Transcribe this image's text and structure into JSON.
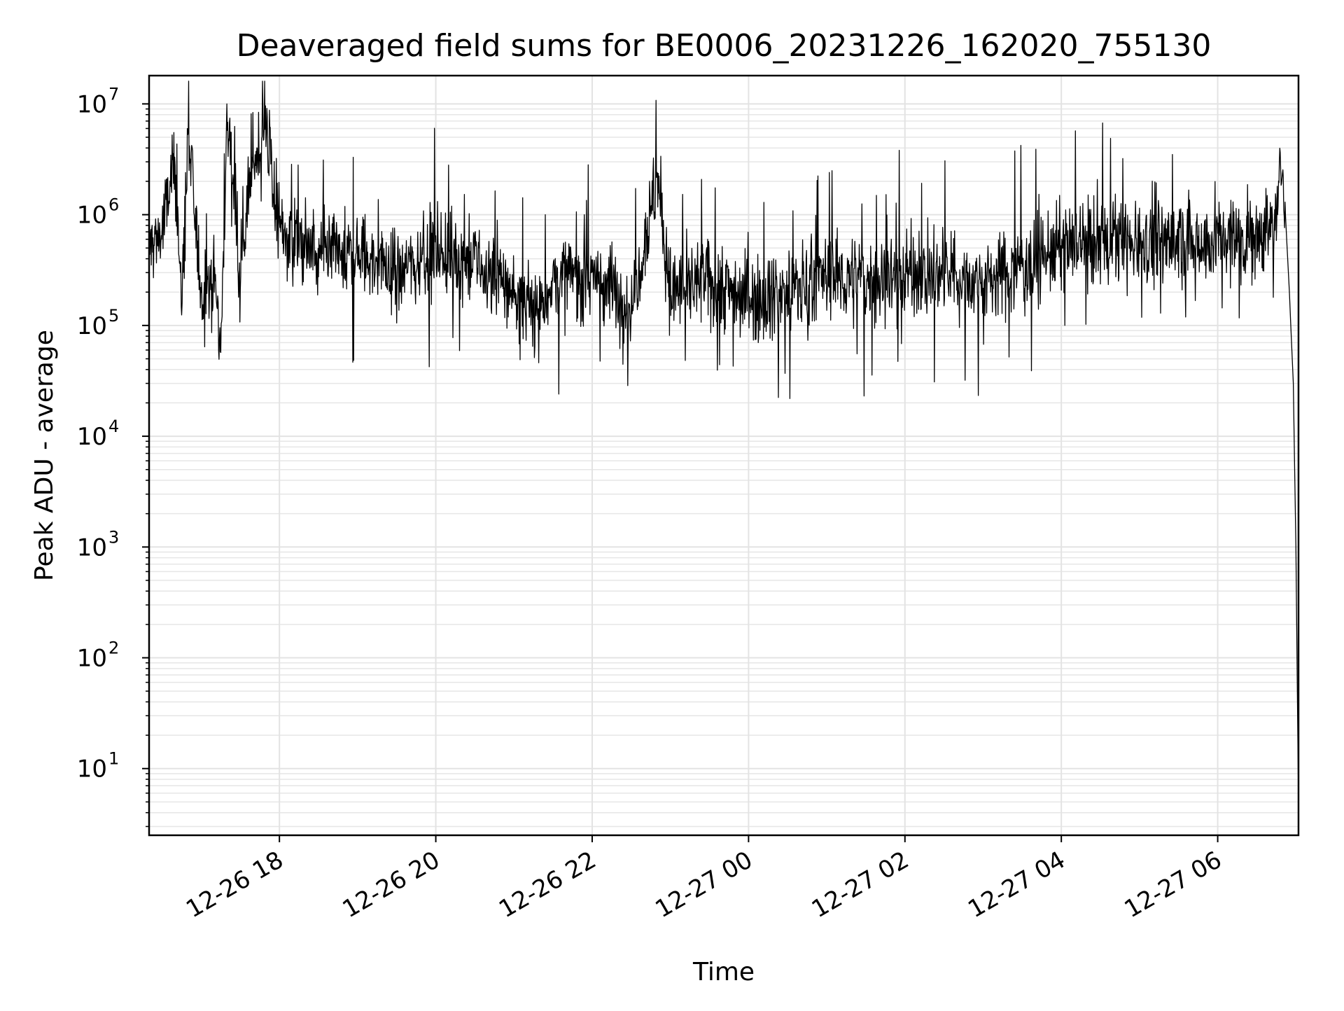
{
  "chart_data": {
    "type": "line",
    "title": "Deaveraged field sums for BE0006_20231226_162020_755130",
    "xlabel": "Time",
    "ylabel": "Peak ADU - average",
    "yscale": "log",
    "ylim": [
      2.5,
      18000000
    ],
    "xlim": [
      "2023-12-26 16:20",
      "2023-12-27 07:02"
    ],
    "grid": "both (major and minor)",
    "x_ticks": [
      {
        "value": "2023-12-26 18:00",
        "label": "12-26 18"
      },
      {
        "value": "2023-12-26 20:00",
        "label": "12-26 20"
      },
      {
        "value": "2023-12-26 22:00",
        "label": "12-26 22"
      },
      {
        "value": "2023-12-27 00:00",
        "label": "12-27 00"
      },
      {
        "value": "2023-12-27 02:00",
        "label": "12-27 02"
      },
      {
        "value": "2023-12-27 04:00",
        "label": "12-27 04"
      },
      {
        "value": "2023-12-27 06:00",
        "label": "12-27 06"
      }
    ],
    "y_ticks": [
      {
        "value": 10,
        "base": "10",
        "exp": "1"
      },
      {
        "value": 100,
        "base": "10",
        "exp": "2"
      },
      {
        "value": 1000,
        "base": "10",
        "exp": "3"
      },
      {
        "value": 10000,
        "base": "10",
        "exp": "4"
      },
      {
        "value": 100000,
        "base": "10",
        "exp": "5"
      },
      {
        "value": 1000000,
        "base": "10",
        "exp": "6"
      },
      {
        "value": 10000000,
        "base": "10",
        "exp": "7"
      }
    ],
    "line_color": "#000000",
    "series": [
      {
        "x": [
          "2023-12-26 16:20",
          "2023-12-26 16:30",
          "2023-12-26 16:40",
          "2023-12-26 16:45",
          "2023-12-26 16:50",
          "2023-12-26 17:00",
          "2023-12-26 17:10",
          "2023-12-26 17:15",
          "2023-12-26 17:20",
          "2023-12-26 17:30",
          "2023-12-26 17:40",
          "2023-12-26 17:50",
          "2023-12-26 18:00",
          "2023-12-26 18:15",
          "2023-12-26 18:30",
          "2023-12-26 19:00",
          "2023-12-26 19:30",
          "2023-12-26 20:00",
          "2023-12-26 20:30",
          "2023-12-26 21:00",
          "2023-12-26 21:15",
          "2023-12-26 21:30",
          "2023-12-26 22:00",
          "2023-12-26 22:30",
          "2023-12-26 22:50",
          "2023-12-26 23:00",
          "2023-12-26 23:30",
          "2023-12-27 00:00",
          "2023-12-27 00:30",
          "2023-12-27 01:00",
          "2023-12-27 01:30",
          "2023-12-27 02:00",
          "2023-12-27 02:30",
          "2023-12-27 03:00",
          "2023-12-27 03:30",
          "2023-12-27 04:00",
          "2023-12-27 04:30",
          "2023-12-27 05:00",
          "2023-12-27 05:30",
          "2023-12-27 06:00",
          "2023-12-27 06:30",
          "2023-12-27 06:45",
          "2023-12-27 06:50",
          "2023-12-27 06:52",
          "2023-12-27 06:55",
          "2023-12-27 06:58",
          "2023-12-27 07:00",
          "2023-12-27 07:02"
        ],
        "y": [
          500000,
          700000,
          3000000,
          150000,
          5000000,
          200000,
          300000,
          60000,
          8000000,
          400000,
          3000000,
          6000000,
          700000,
          600000,
          400000,
          450000,
          300000,
          500000,
          350000,
          200000,
          120000,
          250000,
          300000,
          150000,
          2200000,
          200000,
          250000,
          180000,
          200000,
          280000,
          250000,
          300000,
          280000,
          250000,
          350000,
          500000,
          550000,
          600000,
          550000,
          600000,
          650000,
          900000,
          3500000,
          1000000,
          200000,
          30000,
          1000,
          5
        ]
      }
    ]
  }
}
